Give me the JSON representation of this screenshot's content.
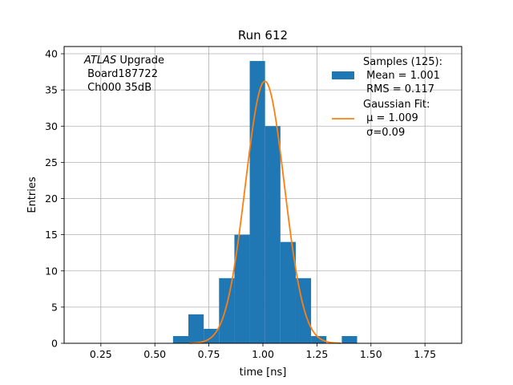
{
  "chart_data": {
    "type": "bar",
    "title": "Run 612",
    "xlabel": "time [ns]",
    "ylabel": "Entries",
    "xlim": [
      0.08,
      1.92
    ],
    "ylim": [
      0,
      41
    ],
    "grid": true,
    "xticks": [
      0.25,
      0.5,
      0.75,
      1.0,
      1.25,
      1.5,
      1.75
    ],
    "xtick_labels": [
      "0.25",
      "0.50",
      "0.75",
      "1.00",
      "1.25",
      "1.50",
      "1.75"
    ],
    "yticks": [
      0,
      5,
      10,
      15,
      20,
      25,
      30,
      35,
      40
    ],
    "ytick_labels": [
      "0",
      "5",
      "10",
      "15",
      "20",
      "25",
      "30",
      "35",
      "40"
    ],
    "histogram": {
      "name": "Samples (125):",
      "color": "#1f77b4",
      "bin_edges": [
        0.584,
        0.655,
        0.726,
        0.797,
        0.868,
        0.939,
        1.01,
        1.081,
        1.152,
        1.223,
        1.294,
        1.365,
        1.436
      ],
      "counts": [
        1,
        4,
        2,
        9,
        15,
        39,
        30,
        14,
        9,
        1,
        0,
        1
      ]
    },
    "gaussian_fit": {
      "name": "Gaussian Fit:",
      "color": "#ff7f0e",
      "amplitude": 36.2,
      "mu": 1.009,
      "sigma": 0.09,
      "x_range": [
        0.66,
        1.36
      ]
    },
    "legend_placement": "top-right",
    "legend": {
      "hist_lines": [
        "Samples (125):",
        " Mean = 1.001",
        " RMS = 0.117"
      ],
      "fit_lines": [
        "Gaussian Fit:",
        " μ = 1.009",
        " σ=0.09"
      ]
    },
    "annotation": {
      "line1_italic": "ATLAS",
      "line1_rest": " Upgrade",
      "line2": " Board187722",
      "line3": " Ch000 35dB"
    }
  }
}
